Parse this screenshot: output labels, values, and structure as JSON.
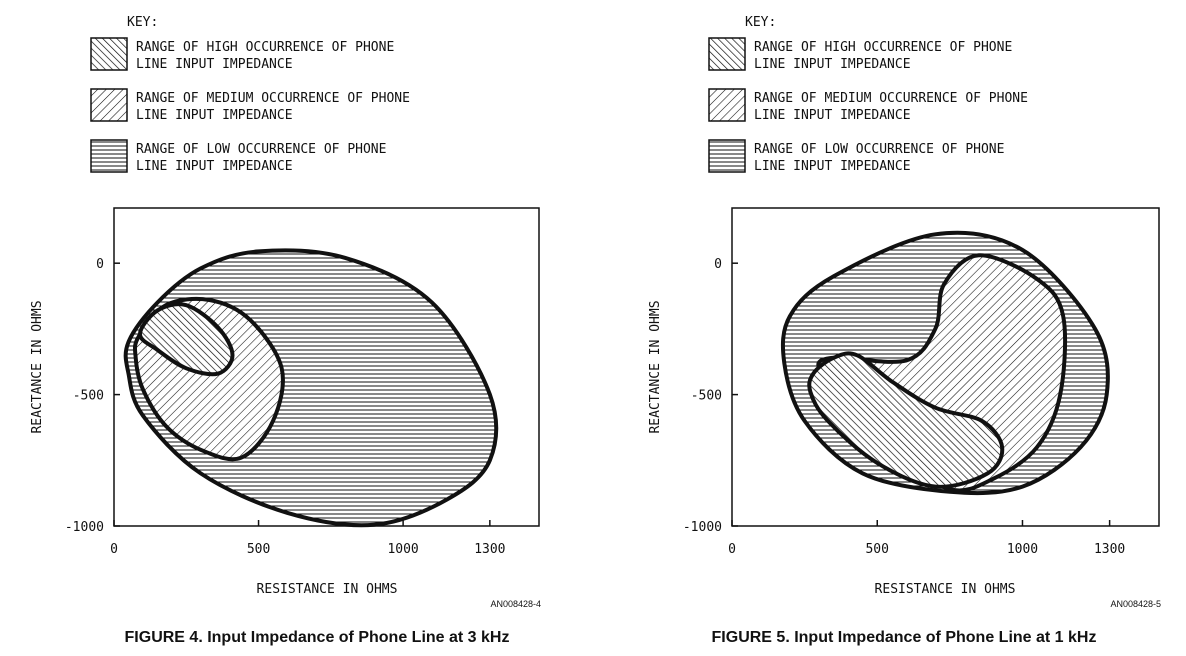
{
  "chart_data": [
    {
      "type": "region",
      "key_title": "KEY:",
      "key_items": [
        {
          "pattern": "high",
          "line1": "RANGE OF HIGH OCCURRENCE OF PHONE",
          "line2": "LINE INPUT IMPEDANCE"
        },
        {
          "pattern": "medium",
          "line1": "RANGE OF MEDIUM OCCURRENCE OF PHONE",
          "line2": "LINE INPUT IMPEDANCE"
        },
        {
          "pattern": "low",
          "line1": "RANGE OF LOW OCCURRENCE OF PHONE",
          "line2": "LINE INPUT IMPEDANCE"
        }
      ],
      "xlabel": "RESISTANCE IN OHMS",
      "ylabel": "REACTANCE IN OHMS",
      "xticks": [
        0,
        500,
        1000,
        1300
      ],
      "yticks": [
        0,
        -500,
        -1000
      ],
      "xlim": [
        0,
        1470
      ],
      "ylim": [
        -1000,
        210
      ],
      "code": "AN008428-4",
      "caption": "FIGURE 4. Input Impedance of Phone Line at 3 kHz",
      "regions": [
        {
          "name": "low",
          "points": [
            [
              50,
              -300
            ],
            [
              150,
              -150
            ],
            [
              300,
              -20
            ],
            [
              500,
              45
            ],
            [
              800,
              20
            ],
            [
              1100,
              -150
            ],
            [
              1300,
              -500
            ],
            [
              1300,
              -750
            ],
            [
              1150,
              -900
            ],
            [
              900,
              -995
            ],
            [
              600,
              -950
            ],
            [
              300,
              -800
            ],
            [
              100,
              -580
            ],
            [
              50,
              -420
            ]
          ]
        },
        {
          "name": "medium",
          "points": [
            [
              85,
              -280
            ],
            [
              180,
              -160
            ],
            [
              330,
              -140
            ],
            [
              470,
              -215
            ],
            [
              580,
              -400
            ],
            [
              550,
              -600
            ],
            [
              440,
              -740
            ],
            [
              300,
              -710
            ],
            [
              180,
              -620
            ],
            [
              100,
              -480
            ],
            [
              75,
              -360
            ]
          ]
        },
        {
          "name": "high",
          "points": [
            [
              90,
              -270
            ],
            [
              150,
              -180
            ],
            [
              250,
              -160
            ],
            [
              360,
              -245
            ],
            [
              410,
              -350
            ],
            [
              360,
              -420
            ],
            [
              250,
              -400
            ],
            [
              150,
              -330
            ]
          ]
        }
      ]
    },
    {
      "type": "region",
      "key_title": "KEY:",
      "key_items": [
        {
          "pattern": "high",
          "line1": "RANGE OF HIGH OCCURRENCE OF PHONE",
          "line2": "LINE INPUT IMPEDANCE"
        },
        {
          "pattern": "medium",
          "line1": "RANGE OF MEDIUM OCCURRENCE OF PHONE",
          "line2": "LINE INPUT IMPEDANCE"
        },
        {
          "pattern": "low",
          "line1": "RANGE OF LOW OCCURRENCE OF PHONE",
          "line2": "LINE INPUT IMPEDANCE"
        }
      ],
      "xlabel": "RESISTANCE IN OHMS",
      "ylabel": "REACTANCE IN OHMS",
      "xticks": [
        0,
        500,
        1000,
        1300
      ],
      "yticks": [
        0,
        -500,
        -1000
      ],
      "xlim": [
        0,
        1470
      ],
      "ylim": [
        -1000,
        210
      ],
      "code": "AN008428-5",
      "caption": "FIGURE 5. Input Impedance of Phone Line at 1 kHz",
      "regions": [
        {
          "name": "low",
          "points": [
            [
              200,
              -200
            ],
            [
              350,
              -50
            ],
            [
              700,
              110
            ],
            [
              1000,
              50
            ],
            [
              1250,
              -250
            ],
            [
              1290,
              -500
            ],
            [
              1200,
              -700
            ],
            [
              1000,
              -850
            ],
            [
              750,
              -870
            ],
            [
              450,
              -800
            ],
            [
              250,
              -600
            ],
            [
              180,
              -380
            ]
          ]
        },
        {
          "name": "medium",
          "points": [
            [
              350,
              -360
            ],
            [
              600,
              -370
            ],
            [
              700,
              -250
            ],
            [
              730,
              -80
            ],
            [
              850,
              30
            ],
            [
              1050,
              -60
            ],
            [
              1140,
              -200
            ],
            [
              1130,
              -500
            ],
            [
              1050,
              -700
            ],
            [
              900,
              -820
            ],
            [
              750,
              -860
            ],
            [
              560,
              -720
            ],
            [
              400,
              -500
            ],
            [
              300,
              -400
            ]
          ]
        },
        {
          "name": "high",
          "points": [
            [
              280,
              -420
            ],
            [
              350,
              -360
            ],
            [
              430,
              -350
            ],
            [
              550,
              -450
            ],
            [
              700,
              -550
            ],
            [
              860,
              -600
            ],
            [
              930,
              -700
            ],
            [
              880,
              -800
            ],
            [
              700,
              -850
            ],
            [
              500,
              -760
            ],
            [
              330,
              -600
            ],
            [
              270,
              -490
            ]
          ]
        }
      ]
    }
  ]
}
